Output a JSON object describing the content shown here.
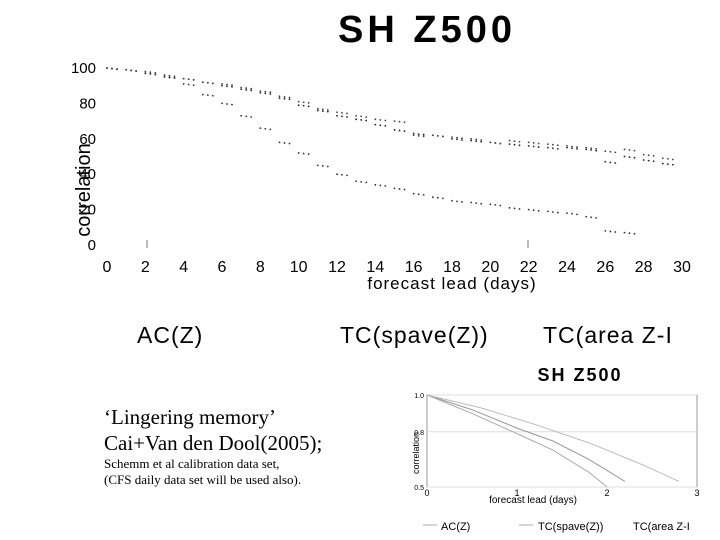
{
  "caption": {
    "line1": "‘Lingering memory’",
    "line2": "Cai+Van den Dool(2005);",
    "line3": "Schemm et al calibration data set,",
    "line4": "(CFS daily data set will be used also)."
  },
  "chart_data": [
    {
      "type": "scatter",
      "title": "SH Z500",
      "xlabel": "forecast lead (days)",
      "ylabel": "correlation",
      "xlim": [
        0,
        30
      ],
      "ylim": [
        0,
        100
      ],
      "xticks": [
        0,
        2,
        4,
        6,
        8,
        10,
        12,
        14,
        16,
        18,
        20,
        22,
        24,
        26,
        28,
        30
      ],
      "yticks": [
        0,
        20,
        40,
        60,
        80,
        100
      ],
      "grid": false,
      "legend_position": "bottom",
      "legend": [
        "AC(Z)",
        "TC(spave(Z))",
        "TC(area Z-I"
      ],
      "series": [
        {
          "name": "AC(Z)",
          "x": [
            0,
            1,
            2,
            3,
            4,
            5,
            6,
            7,
            8,
            9,
            10,
            11,
            12,
            13,
            14,
            15,
            16,
            17,
            18,
            19,
            20,
            21,
            22,
            23,
            24,
            25,
            26,
            27,
            28,
            29
          ],
          "y": [
            100,
            99,
            97,
            95,
            94,
            92,
            90,
            88,
            86,
            83,
            79,
            76,
            73,
            71,
            68,
            65,
            63,
            62,
            60,
            59,
            58,
            57,
            56,
            55,
            55,
            54,
            47,
            50,
            48,
            46
          ]
        },
        {
          "name": "TC(spave(Z))",
          "x": [
            0,
            1,
            2,
            3,
            4,
            5,
            6,
            7,
            8,
            9,
            10,
            11,
            12,
            13,
            14,
            15,
            16,
            17,
            18,
            19,
            20,
            21,
            22,
            23,
            24,
            25,
            26,
            27
          ],
          "y": [
            100,
            99,
            97,
            95,
            91,
            85,
            80,
            73,
            66,
            58,
            52,
            45,
            40,
            36,
            34,
            32,
            29,
            27,
            25,
            24,
            23,
            21,
            20,
            19,
            18,
            16,
            8,
            7
          ]
        },
        {
          "name": "TC(area Z-I",
          "x": [
            0,
            1,
            2,
            3,
            4,
            5,
            6,
            7,
            8,
            9,
            10,
            11,
            12,
            13,
            14,
            15,
            16,
            17,
            18,
            19,
            20,
            21,
            22,
            23,
            24,
            25,
            26,
            27,
            28,
            29
          ],
          "y": [
            100,
            99,
            98,
            96,
            94,
            92,
            91,
            89,
            87,
            84,
            81,
            77,
            75,
            73,
            71,
            70,
            62,
            62,
            61,
            60,
            58,
            59,
            58,
            57,
            56,
            55,
            53,
            54,
            51,
            49
          ]
        }
      ]
    },
    {
      "type": "line",
      "title": "SH Z500",
      "xlabel": "forecast lead (days)",
      "ylabel": "correlation",
      "xlim": [
        0,
        3
      ],
      "ylim": [
        0.5,
        1
      ],
      "xticks": [
        0,
        1,
        2,
        3
      ],
      "yticks": [
        "0.5",
        "0.8",
        "1.0"
      ],
      "grid": true,
      "legend_position": "bottom",
      "legend": [
        "AC(Z)",
        "TC(spave(Z))",
        "TC(area Z-I"
      ],
      "series": [
        {
          "name": "AC(Z)",
          "x": [
            0,
            0.5,
            1,
            1.4,
            1.8,
            2.2
          ],
          "y": [
            1.0,
            0.92,
            0.82,
            0.75,
            0.65,
            0.53
          ]
        },
        {
          "name": "TC(spave(Z))",
          "x": [
            0,
            0.5,
            1,
            1.4,
            1.8,
            2.0
          ],
          "y": [
            1.0,
            0.9,
            0.79,
            0.7,
            0.58,
            0.5
          ]
        },
        {
          "name": "TC(area Z-I",
          "x": [
            0,
            0.6,
            1.2,
            1.8,
            2.4,
            2.8
          ],
          "y": [
            1.0,
            0.93,
            0.84,
            0.74,
            0.62,
            0.53
          ]
        }
      ]
    }
  ]
}
